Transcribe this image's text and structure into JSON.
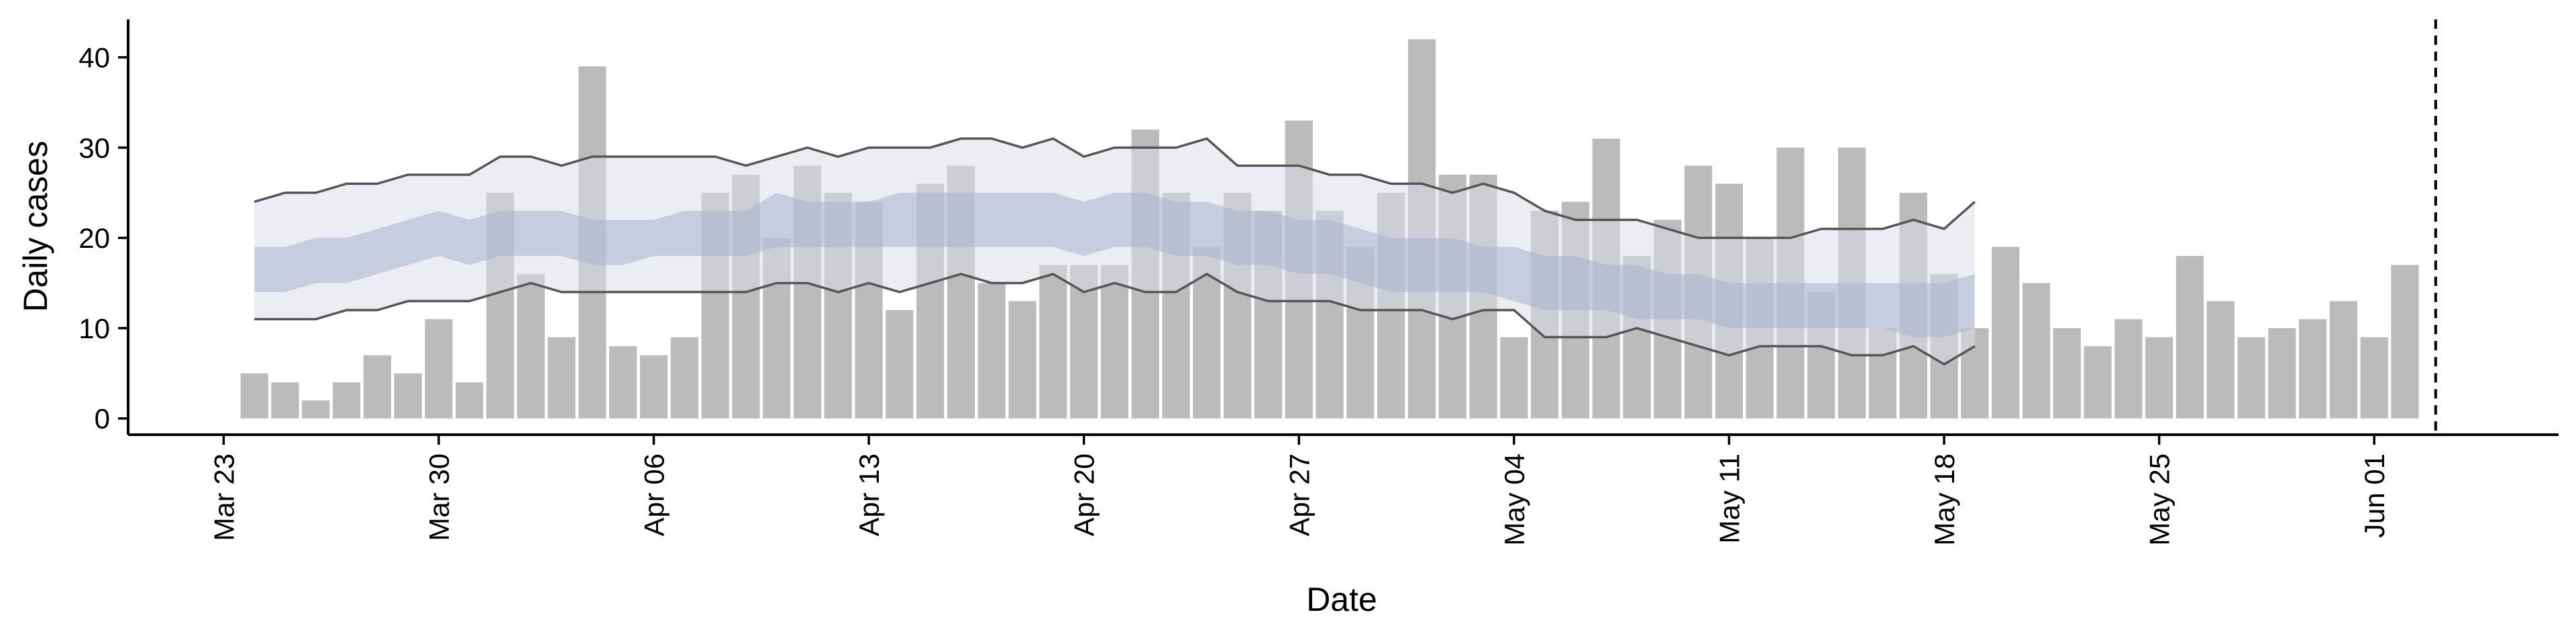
{
  "chart_data": {
    "type": "bar",
    "xlabel": "Date",
    "ylabel": "Daily cases",
    "x": [
      "Mar 24",
      "Mar 25",
      "Mar 26",
      "Mar 27",
      "Mar 28",
      "Mar 29",
      "Mar 30",
      "Mar 31",
      "Apr 01",
      "Apr 02",
      "Apr 03",
      "Apr 04",
      "Apr 05",
      "Apr 06",
      "Apr 07",
      "Apr 08",
      "Apr 09",
      "Apr 10",
      "Apr 11",
      "Apr 12",
      "Apr 13",
      "Apr 14",
      "Apr 15",
      "Apr 16",
      "Apr 17",
      "Apr 18",
      "Apr 19",
      "Apr 20",
      "Apr 21",
      "Apr 22",
      "Apr 23",
      "Apr 24",
      "Apr 25",
      "Apr 26",
      "Apr 27",
      "Apr 28",
      "Apr 29",
      "Apr 30",
      "May 01",
      "May 02",
      "May 03",
      "May 04",
      "May 05",
      "May 06",
      "May 07",
      "May 08",
      "May 09",
      "May 10",
      "May 11",
      "May 12",
      "May 13",
      "May 14",
      "May 15",
      "May 16",
      "May 17",
      "May 18",
      "May 19",
      "May 20",
      "May 21",
      "May 22",
      "May 23",
      "May 24",
      "May 25",
      "May 26",
      "May 27",
      "May 28",
      "May 29",
      "May 30",
      "May 31",
      "Jun 01",
      "Jun 02"
    ],
    "values": [
      5,
      4,
      2,
      4,
      7,
      5,
      11,
      4,
      25,
      16,
      9,
      39,
      8,
      7,
      9,
      25,
      27,
      20,
      28,
      25,
      24,
      12,
      26,
      28,
      15,
      13,
      17,
      17,
      17,
      32,
      25,
      19,
      25,
      23,
      33,
      23,
      19,
      25,
      42,
      27,
      27,
      9,
      23,
      24,
      31,
      18,
      22,
      28,
      26,
      20,
      30,
      14,
      30,
      10,
      25,
      16,
      10,
      19,
      15,
      10,
      8,
      11,
      9,
      18,
      13,
      9,
      10,
      11,
      13,
      9,
      17
    ],
    "color": "#bbbbbb",
    "bands": {
      "x": [
        "Mar 24",
        "Mar 25",
        "Mar 26",
        "Mar 27",
        "Mar 28",
        "Mar 29",
        "Mar 30",
        "Mar 31",
        "Apr 01",
        "Apr 02",
        "Apr 03",
        "Apr 04",
        "Apr 05",
        "Apr 06",
        "Apr 07",
        "Apr 08",
        "Apr 09",
        "Apr 10",
        "Apr 11",
        "Apr 12",
        "Apr 13",
        "Apr 14",
        "Apr 15",
        "Apr 16",
        "Apr 17",
        "Apr 18",
        "Apr 19",
        "Apr 20",
        "Apr 21",
        "Apr 22",
        "Apr 23",
        "Apr 24",
        "Apr 25",
        "Apr 26",
        "Apr 27",
        "Apr 28",
        "Apr 29",
        "Apr 30",
        "May 01",
        "May 02",
        "May 03",
        "May 04",
        "May 05",
        "May 06",
        "May 07",
        "May 08",
        "May 09",
        "May 10",
        "May 11",
        "May 12",
        "May 13",
        "May 14",
        "May 15",
        "May 16",
        "May 17",
        "May 18",
        "May 19"
      ],
      "outer_upper": [
        24,
        25,
        25,
        26,
        26,
        27,
        27,
        27,
        29,
        29,
        28,
        29,
        29,
        29,
        29,
        29,
        28,
        29,
        30,
        29,
        30,
        30,
        30,
        31,
        31,
        30,
        31,
        29,
        30,
        30,
        30,
        31,
        28,
        28,
        28,
        27,
        27,
        26,
        26,
        25,
        26,
        25,
        23,
        22,
        22,
        22,
        21,
        20,
        20,
        20,
        20,
        21,
        21,
        21,
        22,
        21,
        24
      ],
      "outer_lower": [
        11,
        11,
        11,
        12,
        12,
        13,
        13,
        13,
        14,
        15,
        14,
        14,
        14,
        14,
        14,
        14,
        14,
        15,
        15,
        14,
        15,
        14,
        15,
        16,
        15,
        15,
        16,
        14,
        15,
        14,
        14,
        16,
        14,
        13,
        13,
        13,
        12,
        12,
        12,
        11,
        12,
        12,
        9,
        9,
        9,
        10,
        9,
        8,
        7,
        8,
        8,
        8,
        7,
        7,
        8,
        6,
        8
      ],
      "inner_upper": [
        19,
        19,
        20,
        20,
        21,
        22,
        23,
        22,
        23,
        23,
        23,
        22,
        22,
        22,
        23,
        23,
        23,
        25,
        24,
        24,
        24,
        25,
        25,
        25,
        25,
        25,
        25,
        24,
        25,
        25,
        24,
        24,
        23,
        23,
        22,
        22,
        21,
        20,
        20,
        20,
        19,
        19,
        18,
        18,
        17,
        17,
        16,
        16,
        15,
        15,
        15,
        15,
        15,
        15,
        15,
        15,
        16
      ],
      "inner_lower": [
        14,
        14,
        15,
        15,
        16,
        17,
        18,
        17,
        18,
        18,
        18,
        17,
        17,
        18,
        18,
        18,
        18,
        19,
        19,
        19,
        19,
        19,
        19,
        19,
        19,
        19,
        19,
        18,
        19,
        19,
        18,
        18,
        17,
        17,
        16,
        16,
        15,
        14,
        14,
        14,
        14,
        13,
        12,
        12,
        12,
        11,
        11,
        11,
        10,
        10,
        10,
        10,
        10,
        10,
        9,
        9,
        10
      ],
      "outer_color": "#dcdfea",
      "inner_color": "#a9b3cc",
      "line_color": "#555555"
    },
    "vline": "Jun 03",
    "xlim": [
      "Mar 20",
      "Jun 07"
    ],
    "xticks": [
      "Mar 23",
      "Mar 30",
      "Apr 06",
      "Apr 13",
      "Apr 20",
      "Apr 27",
      "May 04",
      "May 11",
      "May 18",
      "May 25",
      "Jun 01"
    ],
    "ylim": [
      -1.8,
      44.2
    ],
    "yticks": [
      0,
      10,
      20,
      30,
      40
    ]
  }
}
